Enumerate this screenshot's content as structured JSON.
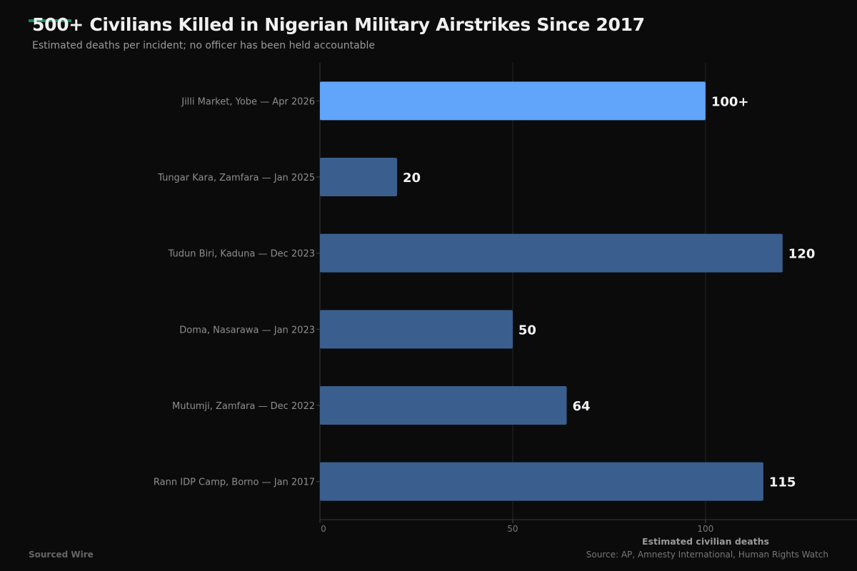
{
  "chart_data": {
    "type": "bar",
    "orientation": "horizontal",
    "title": "500+ Civilians Killed in Nigerian Military Airstrikes Since 2017",
    "subtitle": "Estimated deaths per incident; no officer has been held accountable",
    "categories": [
      "Jilli Market, Yobe — Apr 2026",
      "Tungar Kara, Zamfara — Jan 2025",
      "Tudun Biri, Kaduna — Dec 2023",
      "Doma, Nasarawa — Jan 2023",
      "Mutumji, Zamfara — Dec 2022",
      "Rann IDP Camp, Borno — Jan 2017"
    ],
    "values": [
      100,
      20,
      120,
      50,
      64,
      115
    ],
    "data_labels": [
      "100+",
      "20",
      "120",
      "50",
      "64",
      "115"
    ],
    "highlight_index": 0,
    "colors": {
      "highlight": "#60a5fa",
      "default": "#3a5f8e"
    },
    "xlabel": "Estimated civilian deaths",
    "ylabel": "",
    "xlim": [
      0,
      139.3
    ],
    "xticks": [
      0,
      50,
      100
    ],
    "grid": true,
    "source": "Source: AP, Amnesty International, Human Rights Watch",
    "brand": "Sourced Wire"
  }
}
